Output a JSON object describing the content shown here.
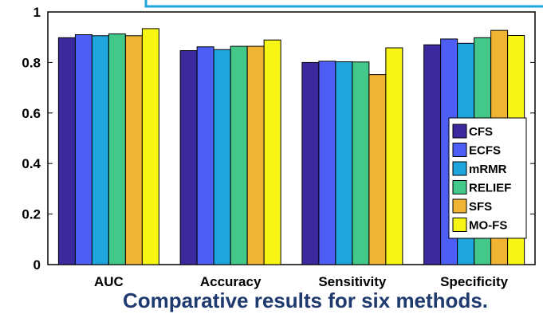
{
  "chart_data": {
    "type": "bar",
    "title": "Comparative results for six methods.",
    "categories": [
      "AUC",
      "Accuracy",
      "Sensitivity",
      "Specificity"
    ],
    "series": [
      {
        "name": "CFS",
        "color": "#3a2a9e",
        "values": [
          0.898,
          0.847,
          0.8,
          0.87
        ]
      },
      {
        "name": "ECFS",
        "color": "#4d5ef5",
        "values": [
          0.91,
          0.862,
          0.805,
          0.893
        ]
      },
      {
        "name": "mRMR",
        "color": "#1ea5dd",
        "values": [
          0.906,
          0.851,
          0.803,
          0.876
        ]
      },
      {
        "name": "RELIEF",
        "color": "#43c88a",
        "values": [
          0.913,
          0.864,
          0.802,
          0.898
        ]
      },
      {
        "name": "SFS",
        "color": "#f0b432",
        "values": [
          0.906,
          0.864,
          0.752,
          0.927
        ]
      },
      {
        "name": "MO-FS",
        "color": "#f6f514",
        "values": [
          0.934,
          0.889,
          0.858,
          0.907
        ]
      }
    ],
    "ylim": [
      0,
      1
    ],
    "yticks": [
      "0",
      "0.2",
      "0.4",
      "0.6",
      "0.8",
      "1"
    ],
    "grid": false,
    "legend_position": "right"
  }
}
